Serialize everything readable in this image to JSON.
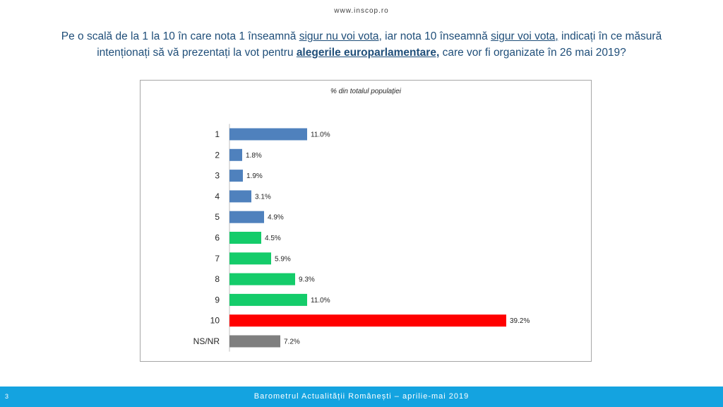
{
  "header": {
    "website": "www.inscop.ro",
    "question": {
      "part1": "Pe o scală de la 1 la 10 în care nota 1 înseamnă ",
      "emph1": "sigur nu voi vota",
      "part2": ", iar nota 10 înseamnă ",
      "emph2": "sigur voi vota,",
      "part3": " indicați în ce măsură intenționați să vă prezentați la vot pentru ",
      "emph3": "alegerile europarlamentare,",
      "part4": " care vor fi organizate în 26 mai 2019?"
    }
  },
  "chart_data": {
    "type": "bar",
    "orientation": "horizontal",
    "title": "% din totalul populației",
    "categories": [
      "1",
      "2",
      "3",
      "4",
      "5",
      "6",
      "7",
      "8",
      "9",
      "10",
      "NS/NR"
    ],
    "values": [
      11.0,
      1.8,
      1.9,
      3.1,
      4.9,
      4.5,
      5.9,
      9.3,
      11.0,
      39.2,
      7.2
    ],
    "value_labels": [
      "11.0%",
      "1.8%",
      "1.9%",
      "3.1%",
      "4.9%",
      "4.5%",
      "5.9%",
      "9.3%",
      "11.0%",
      "39.2%",
      "7.2%"
    ],
    "colors": [
      "#4f81bd",
      "#4f81bd",
      "#4f81bd",
      "#4f81bd",
      "#4f81bd",
      "#14cc6a",
      "#14cc6a",
      "#14cc6a",
      "#14cc6a",
      "#ff0000",
      "#7f7f7f"
    ],
    "xlim": [
      0,
      40
    ],
    "grid": false,
    "legend": "none"
  },
  "footer": {
    "page_number": "3",
    "text": "Barometrul Actualității Românești – aprilie-mai 2019"
  }
}
